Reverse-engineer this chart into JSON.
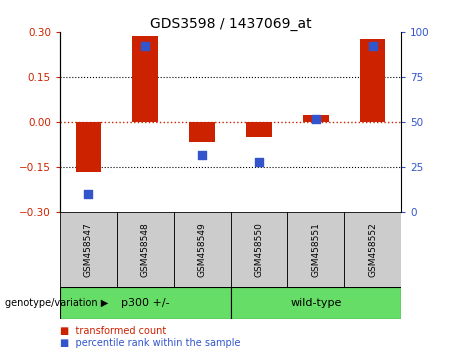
{
  "title": "GDS3598 / 1437069_at",
  "samples": [
    "GSM458547",
    "GSM458548",
    "GSM458549",
    "GSM458550",
    "GSM458551",
    "GSM458552"
  ],
  "transformed_counts": [
    -0.165,
    0.285,
    -0.065,
    -0.05,
    0.025,
    0.275
  ],
  "percentile_ranks": [
    10,
    92,
    32,
    28,
    52,
    92
  ],
  "group_spans": [
    [
      0,
      2,
      "p300 +/-"
    ],
    [
      3,
      5,
      "wild-type"
    ]
  ],
  "group_label": "genotype/variation",
  "ylim_left": [
    -0.3,
    0.3
  ],
  "ylim_right": [
    0,
    100
  ],
  "yticks_left": [
    -0.3,
    -0.15,
    0,
    0.15,
    0.3
  ],
  "yticks_right": [
    0,
    25,
    50,
    75,
    100
  ],
  "bar_color": "#cc2200",
  "dot_color": "#3355cc",
  "zero_line_color": "#cc2200",
  "bar_width": 0.45,
  "legend_items": [
    "transformed count",
    "percentile rank within the sample"
  ],
  "group_bg_color": "#66dd66",
  "sample_bg_color": "#cccccc"
}
